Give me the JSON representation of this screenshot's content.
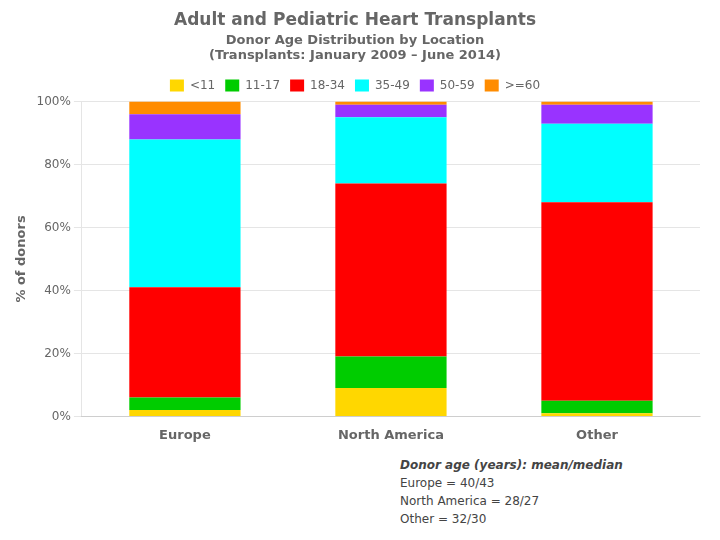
{
  "chart_data": {
    "type": "bar",
    "stacked": true,
    "title": "Adult and Pediatric Heart Transplants",
    "subtitle": [
      "Donor Age Distribution by Location",
      "(Transplants: January 2009 – June 2014)"
    ],
    "categories": [
      "Europe",
      "North America",
      "Other"
    ],
    "series": [
      {
        "name": "<11",
        "color": "#FFD700",
        "values": [
          2,
          9,
          1
        ]
      },
      {
        "name": "11-17",
        "color": "#00CC00",
        "values": [
          4,
          10,
          4
        ]
      },
      {
        "name": "18-34",
        "color": "#FF0000",
        "values": [
          35,
          55,
          63
        ]
      },
      {
        "name": "35-49",
        "color": "#00FFFF",
        "values": [
          47,
          21,
          25
        ]
      },
      {
        "name": "50-59",
        "color": "#9933FF",
        "values": [
          8,
          4,
          6
        ]
      },
      {
        "name": ">=60",
        "color": "#FF8C00",
        "values": [
          4,
          1,
          1
        ]
      }
    ],
    "ylabel": "% of donors",
    "ylim": [
      0,
      100
    ],
    "yticks": [
      {
        "value": 0,
        "label": "0%"
      },
      {
        "value": 20,
        "label": "20%"
      },
      {
        "value": 40,
        "label": "40%"
      },
      {
        "value": 60,
        "label": "60%"
      },
      {
        "value": 80,
        "label": "80%"
      },
      {
        "value": 100,
        "label": "100%"
      }
    ],
    "grid": true,
    "legend": "top",
    "annotations": [
      "Donor age (years): mean/median",
      "Europe = 40/43",
      "North America = 28/27",
      "Other = 32/30"
    ]
  }
}
